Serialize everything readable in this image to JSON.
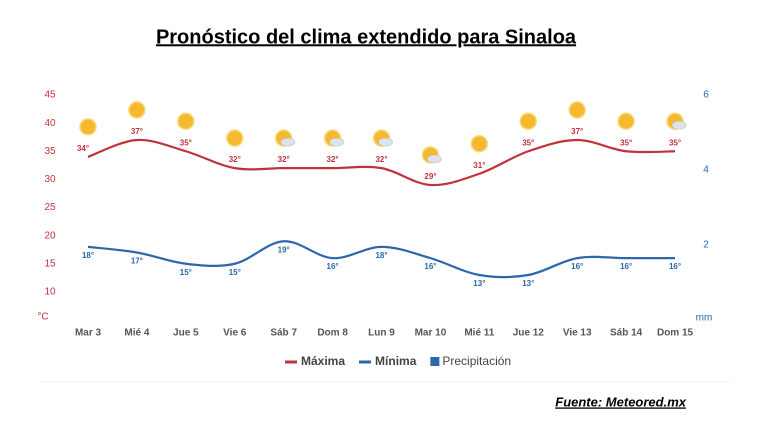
{
  "chart_data": {
    "type": "line",
    "title": "Pronóstico del clima extendido para Sinaloa",
    "source": "Fuente: Meteored.mx",
    "ylabel": "°C",
    "y2label": "mm",
    "categories": [
      "Mar 3",
      "Mié 4",
      "Jue 5",
      "Vie 6",
      "Sáb 7",
      "Dom 8",
      "Lun 9",
      "Mar 10",
      "Mié 11",
      "Jue 12",
      "Vie 13",
      "Sáb 14",
      "Dom 15"
    ],
    "series": [
      {
        "name": "Máxima",
        "color": "#c0323c",
        "values": [
          34,
          37,
          35,
          32,
          32,
          32,
          32,
          29,
          31,
          35,
          37,
          35,
          35
        ],
        "value_labels": [
          "34°",
          "37°",
          "35°",
          "32°",
          "32°",
          "32°",
          "32°",
          "29°",
          "31°",
          "35°",
          "37°",
          "35°",
          "35°"
        ]
      },
      {
        "name": "Mínima",
        "color": "#2b67aa",
        "values": [
          18,
          17,
          15,
          15,
          19,
          16,
          18,
          16,
          13,
          13,
          16,
          16,
          16
        ],
        "value_labels": [
          "18°",
          "17°",
          "15°",
          "15°",
          "19°",
          "16°",
          "18°",
          "16°",
          "13°",
          "13°",
          "16°",
          "16°",
          "16°"
        ]
      },
      {
        "name": "Precipitación",
        "color": "#2b67aa",
        "axis": "y2",
        "values": [
          0,
          0,
          0,
          0,
          0,
          0,
          0,
          0,
          0,
          0,
          0,
          0,
          0
        ]
      }
    ],
    "ylim": [
      5,
      45
    ],
    "yticks": [
      10,
      15,
      20,
      25,
      30,
      35,
      40,
      45
    ],
    "y2lim": [
      0,
      6
    ],
    "y2ticks": [
      2,
      4,
      6
    ],
    "grid": false
  }
}
